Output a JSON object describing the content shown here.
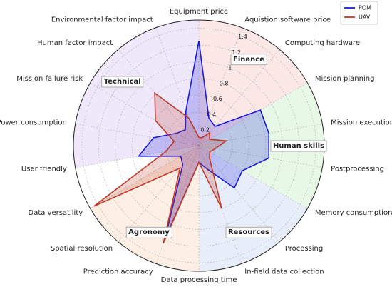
{
  "chart_data": {
    "type": "radar",
    "categories": [
      "Equipment price",
      "Aquistion software price",
      "Computing hardware",
      "Mission planning",
      "Mission execution",
      "Postprocessing",
      "Memory consumption",
      "Processing",
      "In-field data collection",
      "Data processing time",
      "Prediction accuracy",
      "Spatial resolution",
      "Data versatility",
      "User friendly",
      "Power consumption",
      "Mission failure risk",
      "Human factor impact",
      "Environmental factor impact"
    ],
    "series": [
      {
        "name": "POM",
        "color": "#1a1adb",
        "values": [
          1.25,
          0.35,
          0.3,
          0.85,
          0.85,
          0.85,
          0.6,
          0.66,
          0.3,
          0.2,
          1.18,
          0.3,
          0.25,
          0.73,
          0.55,
          0.3,
          0.25,
          0.45
        ]
      },
      {
        "name": "UAV",
        "color": "#c0392b",
        "values": [
          0.1,
          0.1,
          0.2,
          0.15,
          0.33,
          0.2,
          0.15,
          0.2,
          0.8,
          0.2,
          1.24,
          0.35,
          1.45,
          0.4,
          0.3,
          0.6,
          0.82,
          0.35
        ]
      }
    ],
    "groups": [
      {
        "label": "Finance",
        "color": "#f9c9c9",
        "from": 0,
        "to": 2
      },
      {
        "label": "Human skills",
        "color": "#c9f0c9",
        "from": 3,
        "to": 5
      },
      {
        "label": "Resources",
        "color": "#c9daf5",
        "from": 6,
        "to": 8
      },
      {
        "label": "Agronomy",
        "color": "#fcdcc4",
        "from": 9,
        "to": 11
      },
      {
        "label": "Technical",
        "color": "#dccbf7",
        "from": 13,
        "to": 17
      }
    ],
    "ylim": [
      0,
      1.5
    ],
    "yticks": [
      0.2,
      0.4,
      0.6,
      0.8,
      1.0,
      1.2,
      1.4
    ],
    "grid": true,
    "legend": "upper right"
  }
}
